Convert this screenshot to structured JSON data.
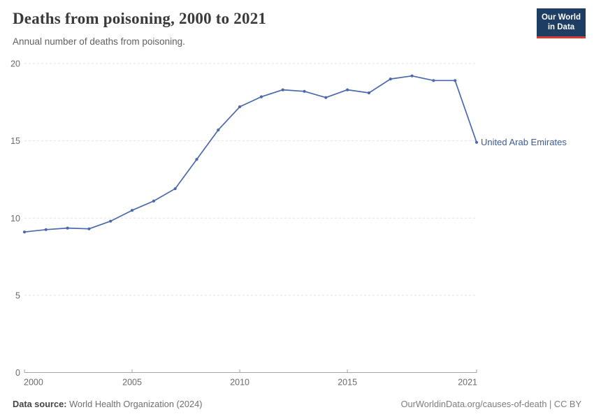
{
  "header": {
    "title": "Deaths from poisoning, 2000 to 2021",
    "subtitle": "Annual number of deaths from poisoning.",
    "logo": {
      "line1": "Our World",
      "line2": "in Data"
    }
  },
  "chart_data": {
    "type": "line",
    "title": "Deaths from poisoning, 2000 to 2021",
    "xlabel": "",
    "ylabel": "",
    "xlim": [
      2000,
      2021
    ],
    "ylim": [
      0,
      20
    ],
    "x_ticks": [
      2000,
      2005,
      2010,
      2015,
      2021
    ],
    "y_ticks": [
      0,
      5,
      10,
      15,
      20
    ],
    "grid": "horizontal-dashed",
    "legend_position": "end-of-line-label",
    "x": [
      2000,
      2001,
      2002,
      2003,
      2004,
      2005,
      2006,
      2007,
      2008,
      2009,
      2010,
      2011,
      2012,
      2013,
      2014,
      2015,
      2016,
      2017,
      2018,
      2019,
      2020,
      2021
    ],
    "series": [
      {
        "name": "United Arab Emirates",
        "color": "#4a69ad",
        "values": [
          9.1,
          9.25,
          9.35,
          9.3,
          9.8,
          10.5,
          11.1,
          11.9,
          13.8,
          15.7,
          17.2,
          17.85,
          18.3,
          18.2,
          17.8,
          18.3,
          18.1,
          19.0,
          19.2,
          18.9,
          18.9,
          14.9
        ]
      }
    ],
    "colors": {
      "gridline": "#e2e2e2",
      "axis": "#a3a3a3",
      "tick_label": "#6b6b6b"
    }
  },
  "footer": {
    "source_label": "Data source:",
    "source_value": " World Health Organization (2024)",
    "credit": "OurWorldinData.org/causes-of-death | CC BY"
  }
}
